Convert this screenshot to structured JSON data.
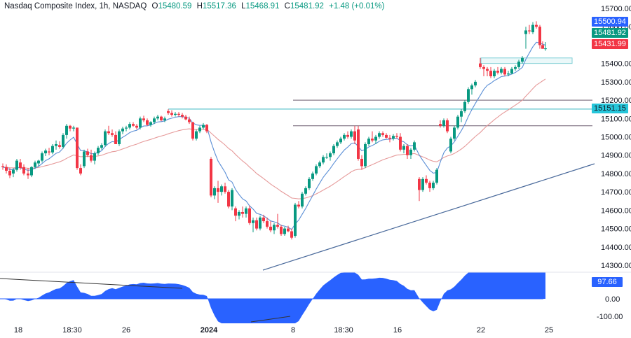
{
  "header": {
    "symbol": "Nasdaq Composite Index, 1h, NASDAQ",
    "open_label": "O",
    "open": "15480.59",
    "high_label": "H",
    "high": "15517.36",
    "low_label": "L",
    "low": "15468.91",
    "close_label": "C",
    "close": "15481.92",
    "change": "+1.48 (+0.01%)"
  },
  "colors": {
    "up": "#089981",
    "down": "#f23645",
    "fast_ma": "#5b8fd6",
    "slow_ma": "#e69a9a",
    "oscillator": "#2962ff",
    "level_line": "#6b5b6e",
    "cyan_line": "#5ec4cc",
    "trendline": "#4a6a9b"
  },
  "price_axis": {
    "ticks": [
      "15700.00",
      "15600.00",
      "15400.00",
      "15300.00",
      "15200.00",
      "15100.00",
      "15000.00",
      "14900.00",
      "14800.00",
      "14700.00",
      "14600.00",
      "14500.00",
      "14400.00",
      "14300.00"
    ],
    "tags": [
      {
        "label": "15500.94",
        "color": "#2962ff",
        "y": 24
      },
      {
        "label": "15481.92",
        "color": "#089981",
        "y": 40
      },
      {
        "label": "15431.99",
        "color": "#f23645",
        "y": 56
      },
      {
        "label": "15151.15",
        "color": "#00bcd4",
        "y": 148
      }
    ]
  },
  "oscillator_axis": {
    "ticks": [
      "0.00",
      "-100.00"
    ],
    "value_tag": "97.66"
  },
  "time_axis": {
    "labels": [
      {
        "text": "18",
        "x": 26,
        "bold": false
      },
      {
        "text": "18:30",
        "x": 103,
        "bold": false
      },
      {
        "text": "26",
        "x": 180,
        "bold": false
      },
      {
        "text": "2024",
        "x": 298,
        "bold": true
      },
      {
        "text": "8",
        "x": 418,
        "bold": false
      },
      {
        "text": "18:30",
        "x": 490,
        "bold": false
      },
      {
        "text": "16",
        "x": 567,
        "bold": false
      },
      {
        "text": "22",
        "x": 686,
        "bold": false
      },
      {
        "text": "25",
        "x": 783,
        "bold": false
      }
    ]
  },
  "chart_data": {
    "type": "candlestick",
    "title": "Nasdaq Composite Index, 1h, NASDAQ",
    "ylim": [
      14300,
      15700
    ],
    "x_ticks": [
      "18",
      "18:30",
      "26",
      "2024",
      "8",
      "18:30",
      "16",
      "22",
      "25"
    ],
    "last": {
      "open": 15480.59,
      "high": 15517.36,
      "low": 15468.91,
      "close": 15481.92,
      "change": 1.48,
      "change_pct": 0.01
    },
    "moving_averages": {
      "fast_last": 15500.94,
      "slow_last": 15431.99
    },
    "horizontal_levels": [
      15200,
      15151.15,
      15060
    ],
    "resistance_zone": [
      15400,
      15430
    ],
    "trendline": {
      "from": [
        375,
        386
      ],
      "to": [
        848,
        234
      ]
    },
    "oscillator": {
      "last": 97.66,
      "ticks": [
        0,
        -100
      ]
    },
    "candles": [
      [
        4,
        14840,
        14855,
        14820,
        14835
      ],
      [
        9,
        14835,
        14850,
        14800,
        14815
      ],
      [
        14,
        14815,
        14830,
        14775,
        14790
      ],
      [
        19,
        14800,
        14830,
        14780,
        14820
      ],
      [
        24,
        14820,
        14880,
        14810,
        14870
      ],
      [
        29,
        14860,
        14880,
        14820,
        14830
      ],
      [
        34,
        14835,
        14850,
        14790,
        14800
      ],
      [
        40,
        14800,
        14830,
        14770,
        14790
      ],
      [
        45,
        14790,
        14840,
        14780,
        14835
      ],
      [
        50,
        14835,
        14870,
        14825,
        14860
      ],
      [
        55,
        14855,
        14875,
        14840,
        14870
      ],
      [
        60,
        14870,
        14920,
        14860,
        14910
      ],
      [
        65,
        14910,
        14935,
        14895,
        14925
      ],
      [
        70,
        14920,
        14940,
        14900,
        14915
      ],
      [
        75,
        14915,
        14960,
        14905,
        14950
      ],
      [
        80,
        14950,
        14980,
        14930,
        14960
      ],
      [
        85,
        14955,
        14975,
        14935,
        14945
      ],
      [
        90,
        14945,
        15020,
        14935,
        15010
      ],
      [
        95,
        15010,
        15070,
        14990,
        15060
      ],
      [
        100,
        15060,
        15065,
        15030,
        15045
      ],
      [
        105,
        15045,
        15060,
        15030,
        15050
      ],
      [
        110,
        15050,
        15050,
        14820,
        14830
      ],
      [
        115,
        14830,
        14850,
        14790,
        14800
      ],
      [
        120,
        14840,
        14930,
        14830,
        14920
      ],
      [
        125,
        14920,
        14935,
        14890,
        14900
      ],
      [
        130,
        14900,
        14930,
        14860,
        14870
      ],
      [
        135,
        14870,
        14920,
        14850,
        14910
      ],
      [
        140,
        14910,
        14950,
        14900,
        14940
      ],
      [
        145,
        14940,
        14965,
        14930,
        14955
      ],
      [
        150,
        14955,
        15040,
        14945,
        15030
      ],
      [
        155,
        15030,
        15060,
        15010,
        15020
      ],
      [
        160,
        15020,
        15040,
        15000,
        15010
      ],
      [
        165,
        15010,
        15030,
        14990,
        14960
      ],
      [
        170,
        14960,
        15040,
        14950,
        15030
      ],
      [
        175,
        15030,
        15055,
        15015,
        15045
      ],
      [
        180,
        15045,
        15060,
        15030,
        15050
      ],
      [
        185,
        15050,
        15080,
        15040,
        15070
      ],
      [
        190,
        15070,
        15080,
        15055,
        15060
      ],
      [
        195,
        15060,
        15070,
        15040,
        15050
      ],
      [
        200,
        15050,
        15110,
        15040,
        15100
      ],
      [
        205,
        15100,
        15115,
        15080,
        15090
      ],
      [
        210,
        15090,
        15100,
        15060,
        15065
      ],
      [
        215,
        15065,
        15085,
        15055,
        15080
      ],
      [
        220,
        15080,
        15110,
        15070,
        15100
      ],
      [
        225,
        15100,
        15120,
        15090,
        15110
      ],
      [
        230,
        15110,
        15115,
        15085,
        15090
      ],
      [
        235,
        15090,
        15110,
        15080,
        15100
      ],
      [
        240,
        15140,
        15150,
        15120,
        15130
      ],
      [
        245,
        15130,
        15145,
        15110,
        15120
      ],
      [
        250,
        15120,
        15135,
        15110,
        15125
      ],
      [
        255,
        15125,
        15135,
        15110,
        15120
      ],
      [
        260,
        15120,
        15130,
        15100,
        15110
      ],
      [
        265,
        15110,
        15120,
        15090,
        15095
      ],
      [
        270,
        15095,
        15110,
        15070,
        15080
      ],
      [
        275,
        15080,
        15080,
        14980,
        14990
      ],
      [
        280,
        14990,
        15040,
        14980,
        15030
      ],
      [
        285,
        15030,
        15060,
        15020,
        15050
      ],
      [
        290,
        15050,
        15075,
        15040,
        15065
      ],
      [
        295,
        15065,
        15070,
        15020,
        15030
      ],
      [
        301,
        14880,
        14890,
        14670,
        14680
      ],
      [
        306,
        14680,
        14730,
        14660,
        14720
      ],
      [
        311,
        14720,
        14760,
        14640,
        14700
      ],
      [
        316,
        14700,
        14740,
        14680,
        14730
      ],
      [
        321,
        14730,
        14750,
        14690,
        14700
      ],
      [
        326,
        14700,
        14710,
        14610,
        14620
      ],
      [
        331,
        14620,
        14720,
        14600,
        14710
      ],
      [
        336,
        14610,
        14620,
        14540,
        14570
      ],
      [
        341,
        14570,
        14600,
        14550,
        14590
      ],
      [
        346,
        14590,
        14620,
        14560,
        14580
      ],
      [
        351,
        14580,
        14620,
        14560,
        14610
      ],
      [
        356,
        14610,
        14625,
        14520,
        14530
      ],
      [
        361,
        14530,
        14560,
        14480,
        14545
      ],
      [
        366,
        14545,
        14560,
        14490,
        14500
      ],
      [
        371,
        14500,
        14570,
        14490,
        14560
      ],
      [
        376,
        14560,
        14575,
        14530,
        14540
      ],
      [
        381,
        14540,
        14560,
        14500,
        14510
      ],
      [
        386,
        14510,
        14540,
        14480,
        14490
      ],
      [
        391,
        14490,
        14530,
        14470,
        14520
      ],
      [
        396,
        14520,
        14580,
        14500,
        14510
      ],
      [
        401,
        14510,
        14520,
        14460,
        14470
      ],
      [
        406,
        14470,
        14510,
        14460,
        14500
      ],
      [
        411,
        14500,
        14515,
        14480,
        14485
      ],
      [
        416,
        14485,
        14500,
        14440,
        14450
      ],
      [
        421,
        14460,
        14640,
        14450,
        14630
      ],
      [
        426,
        14630,
        14650,
        14610,
        14620
      ],
      [
        431,
        14620,
        14700,
        14610,
        14690
      ],
      [
        436,
        14690,
        14730,
        14680,
        14720
      ],
      [
        441,
        14720,
        14780,
        14710,
        14770
      ],
      [
        446,
        14770,
        14810,
        14760,
        14800
      ],
      [
        451,
        14800,
        14850,
        14790,
        14840
      ],
      [
        456,
        14840,
        14870,
        14830,
        14860
      ],
      [
        461,
        14860,
        14900,
        14850,
        14890
      ],
      [
        466,
        14890,
        14910,
        14880,
        14890
      ],
      [
        471,
        14890,
        14920,
        14870,
        14910
      ],
      [
        476,
        14910,
        14960,
        14900,
        14950
      ],
      [
        481,
        14950,
        14980,
        14940,
        14970
      ],
      [
        486,
        14970,
        15000,
        14960,
        14990
      ],
      [
        491,
        14990,
        15020,
        14980,
        15010
      ],
      [
        496,
        15010,
        15030,
        14990,
        15000
      ],
      [
        501,
        15000,
        15040,
        14990,
        15030
      ],
      [
        506,
        15030,
        15060,
        14960,
        14980
      ],
      [
        511,
        15040,
        15060,
        14870,
        14880
      ],
      [
        516,
        14880,
        14900,
        14820,
        14840
      ],
      [
        521,
        14840,
        14970,
        14830,
        14960
      ],
      [
        526,
        14960,
        15000,
        14950,
        14990
      ],
      [
        531,
        14990,
        15030,
        14970,
        14980
      ],
      [
        536,
        14980,
        15010,
        14960,
        15000
      ],
      [
        541,
        15000,
        15030,
        14990,
        15020
      ],
      [
        546,
        15020,
        15030,
        15000,
        15010
      ],
      [
        551,
        15010,
        15020,
        14990,
        14995
      ],
      [
        556,
        14995,
        15010,
        14970,
        14990
      ],
      [
        561,
        14990,
        15015,
        14980,
        15005
      ],
      [
        566,
        15005,
        15020,
        14990,
        15000
      ],
      [
        571,
        15000,
        15020,
        14920,
        14930
      ],
      [
        576,
        14930,
        14960,
        14910,
        14950
      ],
      [
        581,
        14950,
        14960,
        14880,
        14900
      ],
      [
        586,
        14900,
        14940,
        14880,
        14930
      ],
      [
        591,
        14930,
        14980,
        14920,
        14970
      ],
      [
        598,
        14770,
        14780,
        14650,
        14710
      ],
      [
        603,
        14710,
        14780,
        14700,
        14770
      ],
      [
        608,
        14770,
        14790,
        14740,
        14750
      ],
      [
        613,
        14750,
        14760,
        14700,
        14720
      ],
      [
        618,
        14720,
        14760,
        14710,
        14750
      ],
      [
        623,
        14750,
        14830,
        14740,
        14820
      ],
      [
        628,
        15070,
        15090,
        15050,
        15060
      ],
      [
        633,
        15060,
        15100,
        15050,
        15090
      ],
      [
        638,
        15090,
        15100,
        15020,
        15030
      ],
      [
        643,
        14920,
        15000,
        14910,
        14990
      ],
      [
        648,
        14990,
        15060,
        14980,
        15050
      ],
      [
        653,
        15050,
        15120,
        15040,
        15110
      ],
      [
        658,
        15110,
        15150,
        15080,
        15140
      ],
      [
        663,
        15140,
        15200,
        15130,
        15190
      ],
      [
        668,
        15190,
        15270,
        15180,
        15260
      ],
      [
        673,
        15260,
        15290,
        15230,
        15280
      ],
      [
        678,
        15280,
        15310,
        15270,
        15300
      ],
      [
        685,
        15400,
        15430,
        15370,
        15380
      ],
      [
        690,
        15380,
        15390,
        15330,
        15370
      ],
      [
        695,
        15370,
        15380,
        15330,
        15360
      ],
      [
        700,
        15360,
        15380,
        15320,
        15330
      ],
      [
        705,
        15330,
        15370,
        15320,
        15360
      ],
      [
        710,
        15360,
        15380,
        15340,
        15350
      ],
      [
        715,
        15350,
        15380,
        15340,
        15370
      ],
      [
        720,
        15370,
        15380,
        15330,
        15340
      ],
      [
        725,
        15340,
        15360,
        15330,
        15345
      ],
      [
        730,
        15345,
        15380,
        15340,
        15370
      ],
      [
        735,
        15370,
        15390,
        15360,
        15380
      ],
      [
        740,
        15380,
        15420,
        15370,
        15410
      ],
      [
        745,
        15410,
        15440,
        15400,
        15430
      ],
      [
        750,
        15560,
        15600,
        15480,
        15580
      ],
      [
        755,
        15580,
        15610,
        15560,
        15575
      ],
      [
        760,
        15570,
        15625,
        15560,
        15610
      ],
      [
        765,
        15610,
        15630,
        15590,
        15600
      ],
      [
        770,
        15600,
        15610,
        15480,
        15500
      ],
      [
        774,
        15500,
        15520,
        15480,
        15480
      ],
      [
        778,
        15480,
        15517,
        15469,
        15482
      ]
    ]
  }
}
